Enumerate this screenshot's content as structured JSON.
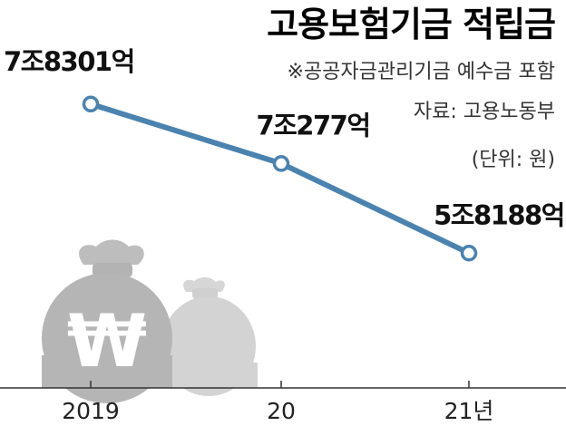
{
  "header": {
    "title": "고용보험기금 적립금",
    "note": "※공공자금관리기금 예수금 포함",
    "source": "자료: 고용노동부",
    "unit": "(단위: 원)"
  },
  "chart_data": {
    "type": "line",
    "title": "고용보험기금 적립금",
    "categories": [
      "2019",
      "20",
      "21년"
    ],
    "series": [
      {
        "values": [
          78301,
          70277,
          58188
        ],
        "data_labels": [
          "7조8301억",
          "7조277억",
          "5조8188억"
        ]
      }
    ],
    "unit": "억원",
    "ylim": [
      40000,
      85000
    ],
    "grid": false,
    "legend": "none",
    "line_color": "#4a82b0",
    "marker_fill": "#ffffff",
    "decoration": "money-bag-icon",
    "currency_symbol": "₩"
  }
}
